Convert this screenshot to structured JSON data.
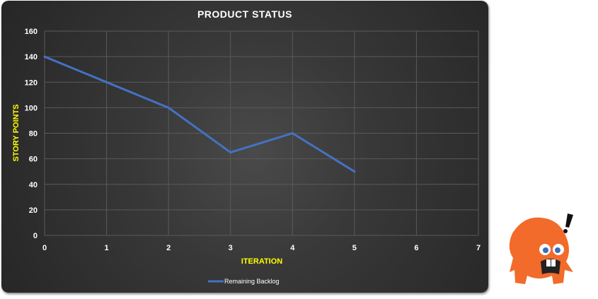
{
  "chart_data": {
    "type": "line",
    "title": "PRODUCT STATUS",
    "xlabel": "ITERATION",
    "ylabel": "STORY POINTS",
    "xlim": [
      0,
      7
    ],
    "ylim": [
      0,
      160
    ],
    "xticks": [
      0,
      1,
      2,
      3,
      4,
      5,
      6,
      7
    ],
    "yticks": [
      0,
      20,
      40,
      60,
      80,
      100,
      120,
      140,
      160
    ],
    "grid": true,
    "legend_position": "bottom",
    "series": [
      {
        "name": "Remaining Backlog",
        "color": "#4472c4",
        "x": [
          0,
          1,
          2,
          3,
          4,
          5
        ],
        "values": [
          140,
          120,
          100,
          65,
          80,
          50
        ]
      }
    ]
  },
  "colors": {
    "axis_label": "#ffff00",
    "background": "#333333",
    "monster": "#f26b2a"
  }
}
